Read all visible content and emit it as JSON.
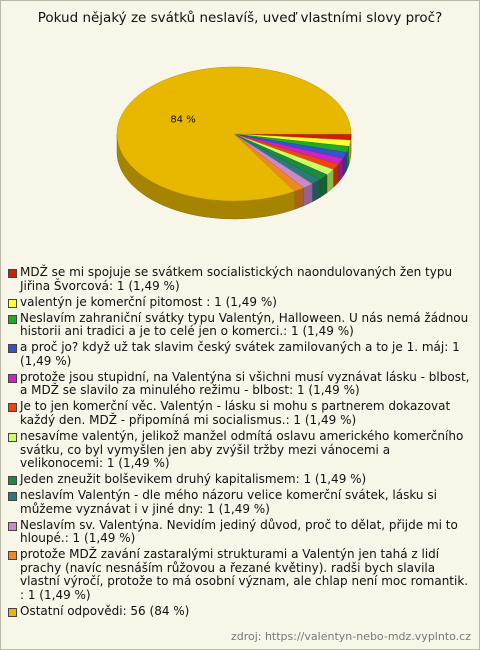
{
  "chart_data": {
    "type": "pie",
    "title": "Pokud nějaký ze svátků neslavíš, uveď vlastními slovy proč?",
    "categories": [
      "MDŽ se mi spojuje se svátkem socialistických naondulovaných žen typu Jiřina Švorcová: 1 (1,49 %)",
      "valentýn je komerční pitomost : 1 (1,49 %)",
      "Neslavím zahraniční svátky typu Valentýn, Halloween. U nás nemá žádnou historii ani tradici a je to celé jen o komerci.: 1 (1,49 %)",
      "a proč jo? když už tak slavim český svátek zamilovaných a to je 1. máj: 1 (1,49 %)",
      "protože jsou stupidní, na Valentýna si všichni musí vyznávat lásku - blbost, a MDŽ se slavilo za minulého režimu - blbost: 1 (1,49 %)",
      "Je to jen komerční věc. Valentýn - lásku si mohu s partnerem dokazovat každý den. MDŽ - připomíná mi socialismus.: 1 (1,49 %)",
      "nesavíme valentýn, jelikož manžel odmítá oslavu amerického komerčního svátku, co byl vymyšlen jen aby zvýšil tržby mezi vánocemi a velikonocemi: 1 (1,49 %)",
      "Jeden zneužit bolševikem druhý kapitalismem: 1 (1,49 %)",
      "neslavím Valentýn - dle mého názoru velice komerční svátek, lásku si můžeme vyznávat i v jiné dny: 1 (1,49 %)",
      "Neslavím sv. Valentýna. Nevidím jediný důvod, proč to dělat, přijde mi to hloupé.: 1 (1,49 %)",
      "protože MDŽ zavání zastaralými strukturami a Valentýn jen tahá z lidí prachy (navíc nesnáším růžovou a řezané květiny). radši bych slavila vlastní výročí, protože to má osobní význam, ale chlap není moc romantik. : 1 (1,49 %)",
      "Ostatní odpovědi: 56 (84 %)"
    ],
    "values": [
      1.49,
      1.49,
      1.49,
      1.49,
      1.49,
      1.49,
      1.49,
      1.49,
      1.49,
      1.49,
      1.49,
      84
    ],
    "value_labels": [
      null,
      null,
      null,
      null,
      null,
      null,
      null,
      null,
      null,
      null,
      null,
      "84 %"
    ],
    "colors": [
      "#c8200c",
      "#ffff33",
      "#22aa22",
      "#3355cc",
      "#cc22cc",
      "#ee4411",
      "#ccff66",
      "#1f8a3a",
      "#2a7a7a",
      "#cc88cc",
      "#ee8822",
      "#e8b800"
    ],
    "source": "zdroj: https://valentyn-nebo-mdz.vyplnto.cz"
  }
}
